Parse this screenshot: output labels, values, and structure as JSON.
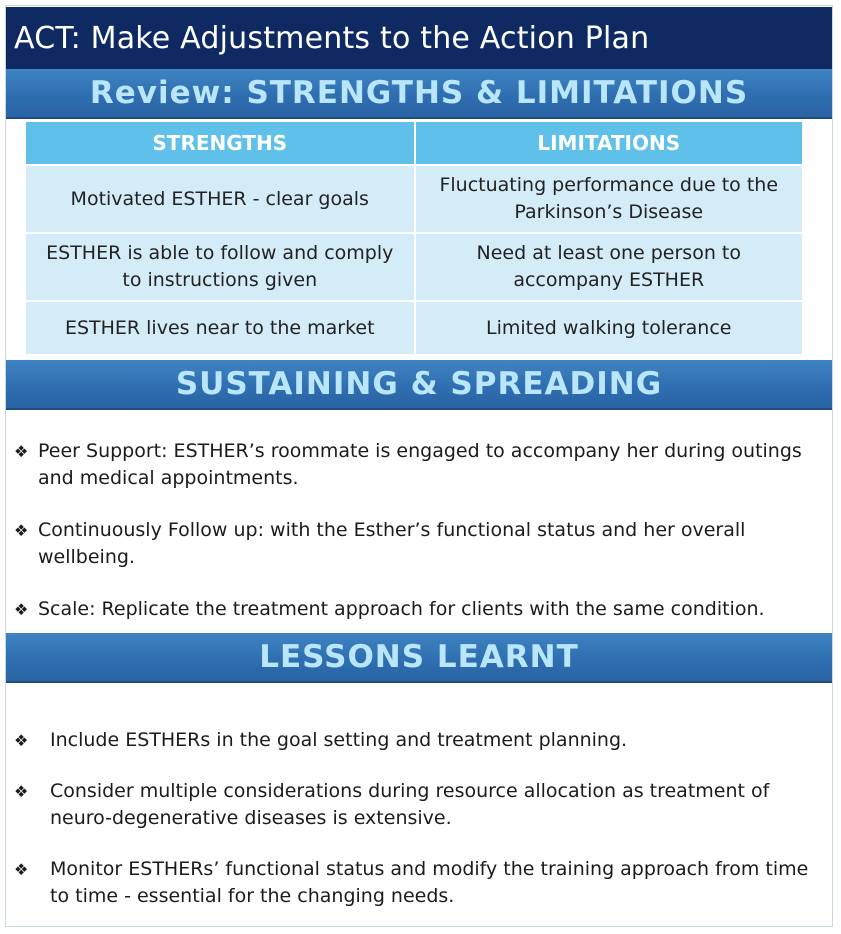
{
  "title": "ACT: Make Adjustments to the Action Plan",
  "review": {
    "heading": "Review: STRENGTHS & LIMITATIONS",
    "columns": [
      "STRENGTHS",
      "LIMITATIONS"
    ],
    "rows": [
      [
        "Motivated ESTHER - clear goals",
        "Fluctuating performance due to the Parkinson’s Disease"
      ],
      [
        "ESTHER is able to follow and comply to instructions given",
        "Need at least one person to accompany ESTHER"
      ],
      [
        "ESTHER lives near to the market",
        "Limited walking tolerance"
      ]
    ]
  },
  "sustaining": {
    "heading": "SUSTAINING & SPREADING",
    "items": [
      "Peer Support: ESTHER’s roommate is engaged to accompany her during outings and medical appointments.",
      "Continuously Follow up: with the Esther’s functional status and her overall wellbeing.",
      "Scale: Replicate the treatment approach for clients with the same condition."
    ]
  },
  "lessons": {
    "heading": "LESSONS LEARNT",
    "items": [
      "Include ESTHERs in the goal setting and treatment planning.",
      "Consider multiple considerations during resource allocation as treatment of neuro-degenerative diseases is extensive.",
      "Monitor ESTHERs’ functional status and modify the training approach from time to time - essential for the changing needs."
    ]
  },
  "colors": {
    "title_bar": "#0f2a63",
    "banner": "#2f6fb1",
    "banner_text": "#b9e6fb",
    "table_header": "#5fc1ea",
    "table_cell": "#d4ecf8"
  },
  "bullet_icon": "diamond-bullet-icon"
}
